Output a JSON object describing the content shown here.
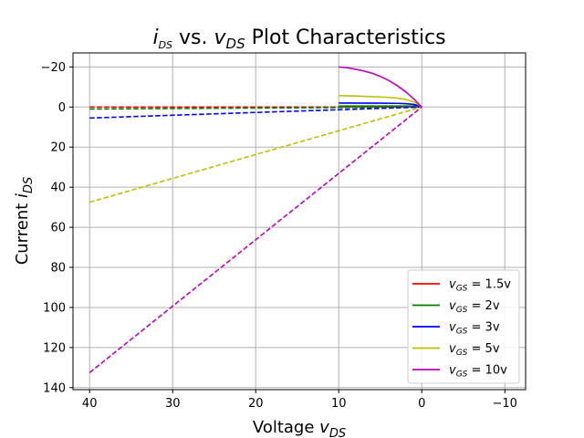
{
  "chart_data": {
    "type": "line",
    "title": {
      "i": "i",
      "i_sub": "DS",
      "mid": " vs. ",
      "v": "v",
      "v_sub": "DS",
      "rest": " Plot Characteristics"
    },
    "xlabel": {
      "text": "Voltage ",
      "sym": "v",
      "sub": "DS"
    },
    "ylabel": {
      "text": "Current ",
      "sym": "i",
      "sub": "DS"
    },
    "x_inverted": true,
    "y_inverted": true,
    "xlim": [
      42,
      -12.5
    ],
    "ylim": [
      141,
      -27
    ],
    "xticks": [
      40,
      30,
      20,
      10,
      0,
      -10
    ],
    "xtick_labels": [
      "40",
      "30",
      "20",
      "10",
      "0",
      "−10"
    ],
    "yticks": [
      -20,
      0,
      20,
      40,
      60,
      80,
      100,
      120,
      140
    ],
    "ytick_labels": [
      "−20",
      "0",
      "20",
      "40",
      "60",
      "80",
      "100",
      "120",
      "140"
    ],
    "grid": true,
    "legend_position": "lower-right",
    "series": [
      {
        "name_prefix": "v",
        "name_sub": "GS",
        "name_suffix": " = 1.5v",
        "color": "#ff0000",
        "solid": [
          [
            0,
            0
          ],
          [
            0.5,
            -0.05
          ],
          [
            1,
            -0.08
          ],
          [
            2,
            -0.1
          ],
          [
            5,
            -0.12
          ],
          [
            10,
            -0.13
          ]
        ],
        "dashed": [
          [
            40,
            0
          ],
          [
            20,
            0
          ],
          [
            0,
            0
          ]
        ]
      },
      {
        "name_prefix": "v",
        "name_sub": "GS",
        "name_suffix": " = 2v",
        "color": "#008000",
        "solid": [
          [
            0,
            0
          ],
          [
            0.5,
            -0.3
          ],
          [
            1,
            -0.45
          ],
          [
            2,
            -0.5
          ],
          [
            5,
            -0.52
          ],
          [
            10,
            -0.53
          ]
        ],
        "dashed": [
          [
            40,
            1.0
          ],
          [
            20,
            0.5
          ],
          [
            0,
            0
          ]
        ]
      },
      {
        "name_prefix": "v",
        "name_sub": "GS",
        "name_suffix": " = 3v",
        "color": "#0000ff",
        "solid": [
          [
            0,
            0
          ],
          [
            0.5,
            -0.8
          ],
          [
            1,
            -1.3
          ],
          [
            2,
            -1.7
          ],
          [
            3,
            -1.85
          ],
          [
            5,
            -1.95
          ],
          [
            10,
            -2.0
          ]
        ],
        "dashed": [
          [
            40,
            5.5
          ],
          [
            20,
            2.7
          ],
          [
            0,
            0
          ]
        ]
      },
      {
        "name_prefix": "v",
        "name_sub": "GS",
        "name_suffix": " = 5v",
        "color": "#bfbf00",
        "solid": [
          [
            0,
            0
          ],
          [
            0.5,
            -1.5
          ],
          [
            1,
            -2.6
          ],
          [
            2,
            -3.8
          ],
          [
            3,
            -4.5
          ],
          [
            4,
            -4.8
          ],
          [
            6,
            -5.2
          ],
          [
            8,
            -5.5
          ],
          [
            10,
            -5.7
          ]
        ],
        "dashed": [
          [
            40,
            47.5
          ],
          [
            20,
            23.7
          ],
          [
            0,
            0
          ]
        ]
      },
      {
        "name_prefix": "v",
        "name_sub": "GS",
        "name_suffix": " = 10v",
        "color": "#bf00bf",
        "solid": [
          [
            0,
            0
          ],
          [
            0.5,
            -2.1
          ],
          [
            1,
            -4.2
          ],
          [
            2,
            -7.8
          ],
          [
            3,
            -10.8
          ],
          [
            4,
            -13.3
          ],
          [
            5,
            -15.3
          ],
          [
            6,
            -16.9
          ],
          [
            7,
            -18.0
          ],
          [
            8,
            -18.9
          ],
          [
            9,
            -19.6
          ],
          [
            10,
            -20.0
          ]
        ],
        "dashed": [
          [
            40,
            132.5
          ],
          [
            20,
            66.2
          ],
          [
            0,
            0
          ]
        ]
      }
    ]
  }
}
